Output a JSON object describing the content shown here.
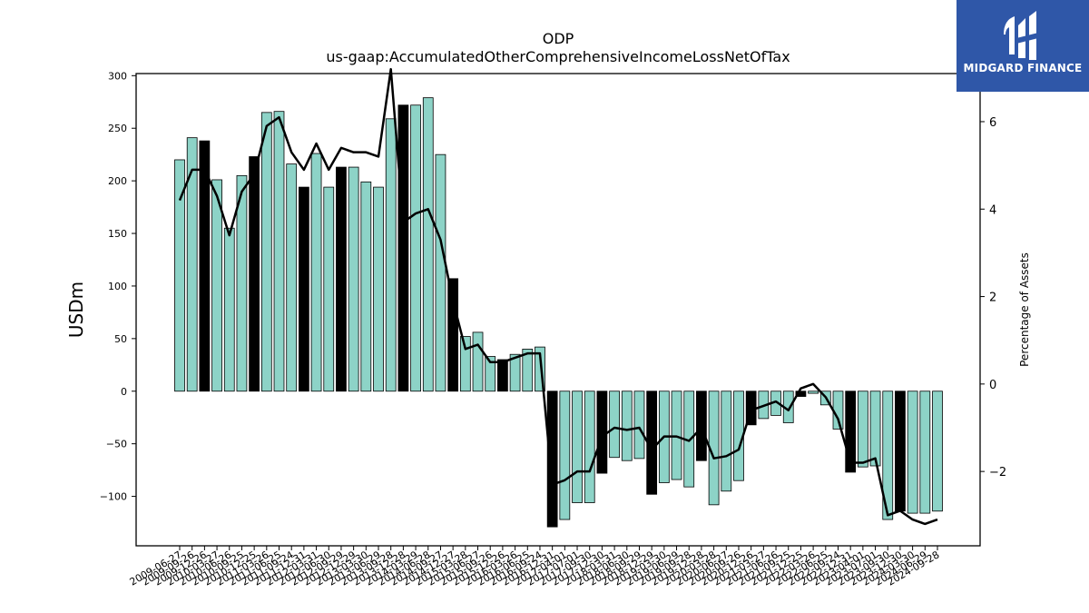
{
  "chart_data": {
    "type": "bar",
    "title": "ODP",
    "subtitle": "us-gaap:AccumulatedOtherComprehensiveIncomeLossNetOfTax",
    "ylabel": "USDm",
    "y2label": "Percentage of Assets",
    "ylim": [
      -147,
      302
    ],
    "y2lim": [
      -3.7,
      7.1
    ],
    "yticks": [
      -100,
      -50,
      0,
      50,
      100,
      150,
      200,
      250,
      300
    ],
    "y2ticks": [
      -2,
      0,
      2,
      4,
      6
    ],
    "categories": [
      "2009-06-27",
      "2009-09-26",
      "2009-12-26",
      "2010-03-27",
      "2010-06-26",
      "2010-09-25",
      "2010-12-25",
      "2011-03-26",
      "2011-06-25",
      "2011-09-24",
      "2011-12-31",
      "2012-03-31",
      "2012-06-30",
      "2012-09-29",
      "2012-12-29",
      "2013-03-30",
      "2013-06-29",
      "2013-09-28",
      "2013-12-28",
      "2014-03-29",
      "2014-06-28",
      "2014-09-27",
      "2014-12-27",
      "2015-03-28",
      "2015-06-27",
      "2015-09-26",
      "2015-12-26",
      "2016-03-26",
      "2016-06-25",
      "2016-09-24",
      "2016-12-31",
      "2017-04-01",
      "2017-07-01",
      "2017-09-30",
      "2017-12-30",
      "2018-03-31",
      "2018-06-30",
      "2018-09-29",
      "2018-12-29",
      "2019-03-30",
      "2019-06-29",
      "2019-09-28",
      "2019-12-28",
      "2020-03-28",
      "2020-06-27",
      "2020-09-26",
      "2020-12-26",
      "2021-03-27",
      "2021-06-26",
      "2021-09-25",
      "2021-12-25",
      "2022-03-26",
      "2022-06-25",
      "2022-09-24",
      "2022-12-31",
      "2023-04-01",
      "2023-07-01",
      "2023-09-30",
      "2023-12-30",
      "2024-03-30",
      "2024-06-29",
      "2024-09-28"
    ],
    "xtick_labels": [
      "2009-06-27",
      "2009-09-26",
      "2009-12-26",
      "2010-03-27",
      "2010-06-26",
      "2010-09-25",
      "2010-12-25",
      "2011-03-26",
      "2011-06-25",
      "2011-09-24",
      "2011-12-31",
      "2012-03-31",
      "2012-06-30",
      "2012-09-29",
      "2012-12-29",
      "2013-03-30",
      "2013-06-29",
      "2013-09-28",
      "2013-12-28",
      "2014-03-29",
      "2014-06-28",
      "2014-09-27",
      "2014-12-27",
      "2015-03-28",
      "2015-06-27",
      "2015-09-26",
      "2015-12-26",
      "2016-03-26",
      "2016-06-25",
      "2016-09-24",
      "2016-12-31",
      "2017-04-01",
      "2017-07-01",
      "2017-09-30",
      "2017-12-30",
      "2018-03-31",
      "2018-06-30",
      "2018-09-29",
      "2018-12-29",
      "2019-03-30",
      "2019-06-29",
      "2019-09-28",
      "2019-12-28",
      "2020-03-28",
      "2020-06-27",
      "2020-09-26",
      "2020-12-26",
      "2021-03-27",
      "2021-06-26",
      "2021-09-25",
      "2021-12-25",
      "2022-03-26",
      "2022-06-25",
      "2022-09-24",
      "2022-12-31",
      "2023-04-01",
      "2023-07-01",
      "2023-09-30",
      "2023-12-30",
      "2024-03-30",
      "2024-06-29",
      "2024-09-28"
    ],
    "series": [
      {
        "values": [
          220,
          241,
          238,
          201,
          155,
          205,
          223,
          265,
          266,
          216,
          194,
          226,
          194,
          213,
          213,
          199,
          194,
          259,
          272,
          272,
          279,
          225,
          107,
          52,
          56,
          33,
          30,
          35,
          40,
          42,
          -129,
          -122,
          -106,
          -106,
          -78,
          -63,
          -66,
          -64,
          -98,
          -87,
          -84,
          -91,
          -66,
          -108,
          -95,
          -85,
          -32,
          -26,
          -23,
          -30,
          -5,
          -2,
          -13,
          -36,
          -77,
          -72,
          -71,
          -122,
          -114,
          -116,
          -116,
          -114
        ],
        "highlight": [
          false,
          false,
          true,
          false,
          false,
          false,
          true,
          false,
          false,
          false,
          true,
          false,
          false,
          true,
          false,
          false,
          false,
          false,
          true,
          false,
          false,
          false,
          true,
          false,
          false,
          false,
          true,
          false,
          false,
          false,
          true,
          false,
          false,
          false,
          true,
          false,
          false,
          false,
          true,
          false,
          false,
          false,
          true,
          false,
          false,
          false,
          true,
          false,
          false,
          false,
          true,
          false,
          false,
          false,
          true,
          false,
          false,
          false,
          true,
          false,
          false,
          false
        ],
        "color": "#8dd3c7",
        "highlight_color": "#000000"
      },
      {
        "axis": "right",
        "type": "line",
        "color": "#000000",
        "values": [
          4.2,
          4.9,
          4.9,
          4.3,
          3.4,
          4.4,
          4.8,
          5.9,
          6.1,
          5.3,
          4.9,
          5.5,
          4.9,
          5.4,
          5.3,
          5.3,
          5.2,
          7.2,
          3.7,
          3.9,
          4.0,
          3.3,
          1.9,
          0.8,
          0.9,
          0.5,
          0.5,
          0.6,
          0.7,
          0.7,
          -2.3,
          -2.2,
          -2.0,
          -2.0,
          -1.2,
          -1.0,
          -1.05,
          -1.0,
          -1.5,
          -1.2,
          -1.2,
          -1.3,
          -1.0,
          -1.7,
          -1.65,
          -1.5,
          -0.6,
          -0.5,
          -0.4,
          -0.6,
          -0.1,
          0.0,
          -0.3,
          -0.8,
          -1.8,
          -1.8,
          -1.7,
          -3.0,
          -2.9,
          -3.1,
          -3.2,
          -3.1
        ]
      }
    ]
  },
  "logo": {
    "text": "MIDGARD FINANCE",
    "background": "#2f57a8"
  }
}
